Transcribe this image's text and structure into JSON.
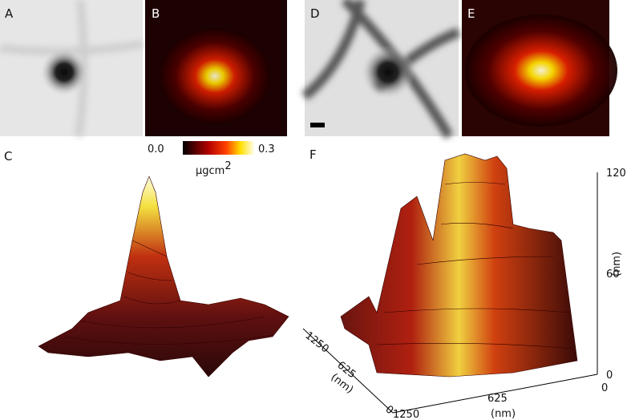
{
  "panels": {
    "a": "A",
    "b": "B",
    "c": "C",
    "d": "D",
    "e": "E",
    "f": "F"
  },
  "colorbar": {
    "min": "0.0",
    "max": "0.3",
    "unit": "µgcm",
    "unit_superscript": "2"
  },
  "plot_f": {
    "z_axis": {
      "ticks": [
        "120",
        "60",
        "0"
      ],
      "label": "(nm)"
    },
    "y_axis": {
      "ticks": [
        "1250",
        "625",
        "0"
      ],
      "label": "(nm)"
    },
    "x_axis": {
      "ticks": [
        "1250",
        "625",
        "0"
      ],
      "label": "(nm)"
    }
  }
}
